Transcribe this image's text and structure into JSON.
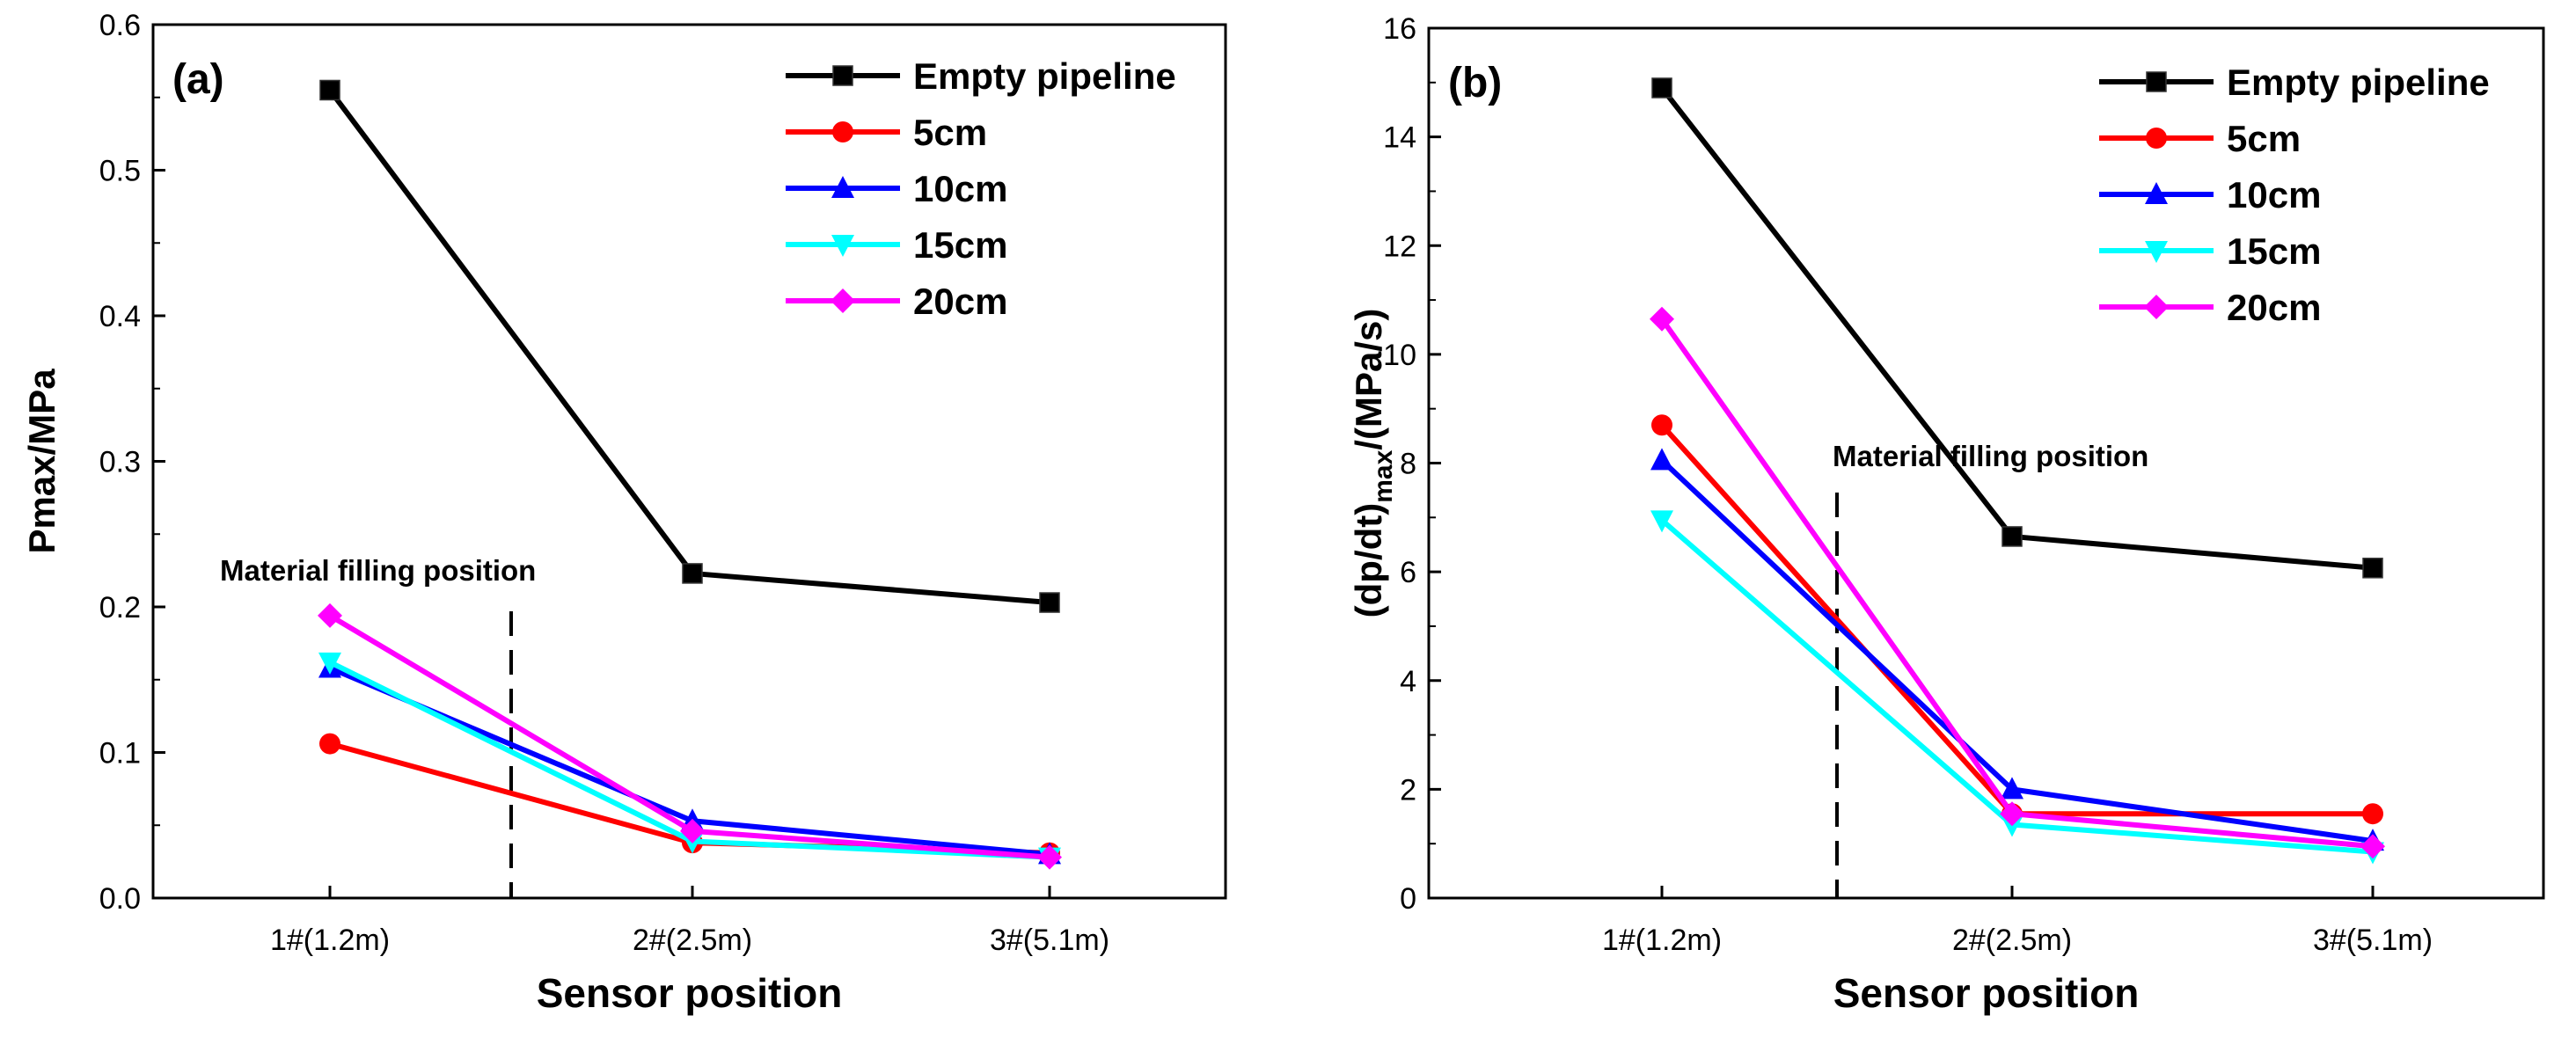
{
  "chart_data": [
    {
      "panel_label": "(a)",
      "type": "line",
      "categories": [
        "1#(1.2m)",
        "2#(2.5m)",
        "3#(5.1m)"
      ],
      "xlabel": "Sensor position",
      "ylabel": "Pmax/MPa",
      "ylim": [
        0,
        0.6
      ],
      "yticks": [
        "0.0",
        "0.1",
        "0.2",
        "0.3",
        "0.4",
        "0.5",
        "0.6"
      ],
      "legend_position": "top-right",
      "series": [
        {
          "name": "Empty pipeline",
          "color": "#000000",
          "marker": "square",
          "values": [
            0.555,
            0.223,
            0.203
          ]
        },
        {
          "name": "5cm",
          "color": "#ff0000",
          "marker": "circle",
          "values": [
            0.106,
            0.038,
            0.031
          ]
        },
        {
          "name": "10cm",
          "color": "#0000ff",
          "marker": "triangle-up",
          "values": [
            0.158,
            0.053,
            0.03
          ]
        },
        {
          "name": "15cm",
          "color": "#00ffff",
          "marker": "triangle-down",
          "values": [
            0.162,
            0.039,
            0.028
          ]
        },
        {
          "name": "20cm",
          "color": "#ff00ff",
          "marker": "diamond",
          "values": [
            0.194,
            0.046,
            0.028
          ]
        }
      ],
      "annotation": {
        "text": "Material filling position",
        "x_data": 1.5,
        "y_top": 0.2
      }
    },
    {
      "panel_label": "(b)",
      "type": "line",
      "categories": [
        "1#(1.2m)",
        "2#(2.5m)",
        "3#(5.1m)"
      ],
      "xlabel": "Sensor position",
      "ylabel_parts": {
        "pre": "(dp/dt)",
        "sub": "max",
        "post": "/(MPa/s)"
      },
      "ylim": [
        0,
        16
      ],
      "yticks": [
        "0",
        "2",
        "4",
        "6",
        "8",
        "10",
        "12",
        "14",
        "16"
      ],
      "legend_position": "top-right",
      "series": [
        {
          "name": "Empty pipeline",
          "color": "#000000",
          "marker": "square",
          "values": [
            14.9,
            6.65,
            6.07
          ]
        },
        {
          "name": "5cm",
          "color": "#ff0000",
          "marker": "circle",
          "values": [
            8.7,
            1.55,
            1.55
          ]
        },
        {
          "name": "10cm",
          "color": "#0000ff",
          "marker": "triangle-up",
          "values": [
            8.05,
            2.0,
            1.05
          ]
        },
        {
          "name": "15cm",
          "color": "#00ffff",
          "marker": "triangle-down",
          "values": [
            6.95,
            1.35,
            0.85
          ]
        },
        {
          "name": "20cm",
          "color": "#ff00ff",
          "marker": "diamond",
          "values": [
            10.65,
            1.55,
            0.95
          ]
        }
      ],
      "annotation": {
        "text": "Material filling position",
        "x_data": 1.5,
        "y_top": 7.7
      }
    }
  ]
}
